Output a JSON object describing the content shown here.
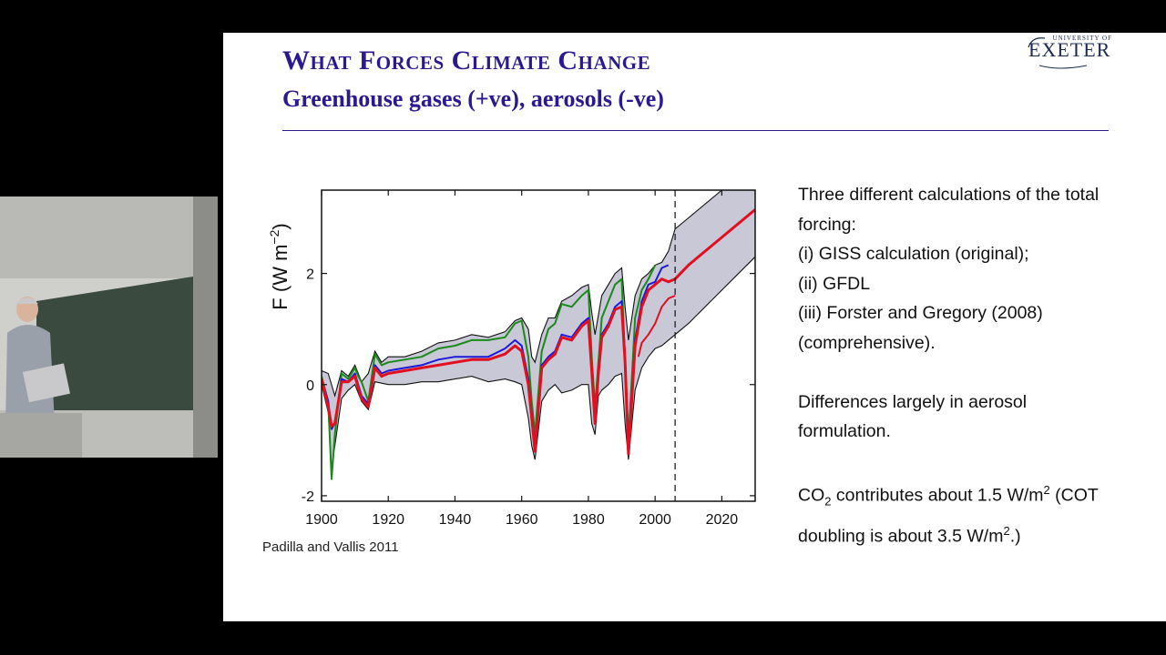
{
  "slide": {
    "title": "What Forces Climate Change",
    "subtitle": "Greenhouse gases (+ve), aerosols (-ve)",
    "logo_small": "UNIVERSITY OF",
    "logo_main": "EXETER",
    "credit": "Padilla and Vallis 2011",
    "notes": {
      "line1": "Three different calculations of the total",
      "line2": "forcing:",
      "line3": "(i) GISS calculation (original);",
      "line4": "(ii) GFDL",
      "line5": "(iii) Forster and Gregory (2008)",
      "line6": "(comprehensive).",
      "line7": "Differences largely in aerosol",
      "line8": "formulation.",
      "co2_a": "CO",
      "co2_sub": "2",
      "co2_b": " contributes about 1.5 W/m",
      "co2_sup": "2",
      "co2_c": " (COT",
      "co2_d": "doubling is about 3.5 W/m",
      "co2_sup2": "2",
      "co2_e": ".)"
    }
  },
  "colors": {
    "title": "#2b1a8f",
    "band": "#c8c8d6",
    "series_green": "#1a8a1a",
    "series_blue": "#1a1ad8",
    "series_red": "#e01020"
  },
  "chart_data": {
    "type": "line",
    "ylabel": "F (W m",
    "ylabel_sup": "−2",
    "ylabel_close": ")",
    "xlim": [
      1900,
      2030
    ],
    "ylim": [
      -2.1,
      3.5
    ],
    "x_ticks": [
      1900,
      1920,
      1940,
      1960,
      1980,
      2000,
      2020
    ],
    "x_tick_labels": [
      "1900",
      "1920",
      "1940",
      "1960",
      "1980",
      "2000",
      "2020"
    ],
    "y_ticks": [
      -2,
      0,
      2
    ],
    "y_tick_labels": [
      "-2",
      "0",
      "2"
    ],
    "vline_x": 2006,
    "band_upper": {
      "x": [
        1900,
        1902,
        1904,
        1906,
        1908,
        1910,
        1912,
        1914,
        1916,
        1918,
        1920,
        1925,
        1930,
        1935,
        1940,
        1945,
        1950,
        1955,
        1958,
        1960,
        1962,
        1963,
        1964,
        1966,
        1968,
        1970,
        1972,
        1975,
        1978,
        1980,
        1981,
        1982,
        1984,
        1986,
        1988,
        1990,
        1991,
        1992,
        1994,
        1996,
        1998,
        2000,
        2002,
        2004,
        2006,
        2010,
        2020,
        2030
      ],
      "y": [
        0.25,
        0.2,
        -0.2,
        0.25,
        0.15,
        0.35,
        0.05,
        0.2,
        0.6,
        0.4,
        0.5,
        0.5,
        0.6,
        0.75,
        0.8,
        0.9,
        0.85,
        0.95,
        1.15,
        1.2,
        1.0,
        0.5,
        0.4,
        0.9,
        1.2,
        1.2,
        1.5,
        1.6,
        1.75,
        1.8,
        1.3,
        0.9,
        1.6,
        1.8,
        2.0,
        2.1,
        1.4,
        0.8,
        1.6,
        1.9,
        2.0,
        2.15,
        2.2,
        2.4,
        2.8,
        3.0,
        3.5,
        4.1
      ]
    },
    "band_lower": {
      "x": [
        1900,
        1902,
        1903,
        1904,
        1906,
        1908,
        1910,
        1912,
        1914,
        1916,
        1920,
        1925,
        1930,
        1935,
        1940,
        1945,
        1950,
        1955,
        1958,
        1960,
        1962,
        1963,
        1964,
        1966,
        1968,
        1970,
        1972,
        1975,
        1978,
        1980,
        1981,
        1982,
        1983,
        1984,
        1986,
        1988,
        1990,
        1991,
        1992,
        1994,
        1996,
        1998,
        2000,
        2002,
        2004,
        2006,
        2010,
        2020,
        2030
      ],
      "y": [
        0.0,
        -0.5,
        -1.5,
        -1.1,
        -0.25,
        -0.1,
        0.0,
        -0.3,
        -0.45,
        0.05,
        0.0,
        0.0,
        0.05,
        0.05,
        0.1,
        0.15,
        0.05,
        0.1,
        0.05,
        0.0,
        -0.6,
        -1.1,
        -1.35,
        -0.3,
        -0.1,
        0.0,
        -0.15,
        -0.1,
        0.0,
        0.0,
        -0.7,
        -0.9,
        -0.2,
        -0.1,
        0.0,
        0.15,
        0.2,
        -0.7,
        -1.35,
        -0.1,
        0.3,
        0.5,
        0.65,
        0.7,
        0.8,
        0.9,
        1.1,
        1.7,
        2.3
      ]
    },
    "series": [
      {
        "color_key": "series_green",
        "x": [
          1900,
          1902,
          1903,
          1904,
          1906,
          1908,
          1910,
          1911,
          1912,
          1914,
          1916,
          1918,
          1920,
          1925,
          1930,
          1935,
          1940,
          1945,
          1950,
          1955,
          1958,
          1960,
          1962,
          1963,
          1964,
          1966,
          1968,
          1970,
          1972,
          1975,
          1978,
          1980,
          1981,
          1982,
          1983,
          1984,
          1986,
          1988,
          1990,
          1991,
          1992,
          1994,
          1996,
          1998,
          2000
        ],
        "y": [
          0.15,
          -0.3,
          -1.7,
          -0.9,
          0.2,
          0.1,
          0.3,
          0.15,
          0.05,
          -0.3,
          0.55,
          0.35,
          0.4,
          0.45,
          0.5,
          0.65,
          0.7,
          0.8,
          0.8,
          0.85,
          1.1,
          1.15,
          0.5,
          -0.3,
          -0.9,
          0.6,
          1.0,
          1.1,
          1.45,
          1.4,
          1.6,
          1.7,
          0.5,
          -0.4,
          0.4,
          1.2,
          1.5,
          1.8,
          1.9,
          0.4,
          -1.0,
          1.2,
          1.7,
          1.9,
          2.15
        ]
      },
      {
        "color_key": "series_blue",
        "x": [
          1900,
          1902,
          1903,
          1904,
          1906,
          1908,
          1910,
          1912,
          1914,
          1916,
          1918,
          1920,
          1925,
          1930,
          1935,
          1940,
          1945,
          1950,
          1955,
          1958,
          1960,
          1962,
          1963,
          1964,
          1966,
          1968,
          1970,
          1972,
          1975,
          1978,
          1980,
          1981,
          1982,
          1983,
          1984,
          1986,
          1988,
          1990,
          1991,
          1992,
          1994,
          1996,
          1998,
          2000,
          2002,
          2004
        ],
        "y": [
          0.1,
          -0.3,
          -0.8,
          -0.7,
          0.1,
          0.05,
          0.2,
          -0.2,
          -0.35,
          0.35,
          0.2,
          0.25,
          0.3,
          0.35,
          0.45,
          0.5,
          0.5,
          0.5,
          0.65,
          0.8,
          0.7,
          0.1,
          -0.5,
          -1.1,
          0.35,
          0.5,
          0.6,
          0.9,
          0.85,
          1.1,
          1.2,
          0.3,
          -0.6,
          0.3,
          0.9,
          1.1,
          1.4,
          1.5,
          0.5,
          -1.1,
          0.8,
          1.5,
          1.8,
          1.85,
          2.1,
          2.15
        ]
      },
      {
        "color_key": "series_red",
        "x": [
          1900,
          1902,
          1903,
          1904,
          1906,
          1908,
          1910,
          1912,
          1914,
          1916,
          1918,
          1920,
          1925,
          1930,
          1935,
          1940,
          1945,
          1950,
          1955,
          1958,
          1960,
          1962,
          1963,
          1964,
          1966,
          1968,
          1970,
          1972,
          1975,
          1978,
          1980,
          1981,
          1982,
          1983,
          1984,
          1986,
          1988,
          1990,
          1991,
          1992,
          1994,
          1996,
          1998,
          2000,
          2002,
          2004,
          2006,
          2010,
          2020,
          2030
        ],
        "y": [
          0.1,
          -0.4,
          -0.75,
          -0.7,
          0.05,
          0.05,
          0.15,
          -0.25,
          -0.4,
          0.3,
          0.15,
          0.2,
          0.25,
          0.3,
          0.35,
          0.4,
          0.45,
          0.45,
          0.55,
          0.7,
          0.6,
          0.0,
          -0.6,
          -1.2,
          0.3,
          0.45,
          0.55,
          0.85,
          0.8,
          1.05,
          1.15,
          0.25,
          -0.7,
          0.2,
          0.85,
          1.05,
          1.35,
          1.4,
          0.4,
          -1.25,
          0.7,
          1.4,
          1.7,
          1.8,
          1.9,
          1.85,
          1.9,
          2.15,
          2.65,
          3.15
        ]
      },
      {
        "color_key": "series_red",
        "x": [
          1995,
          1996,
          1998,
          2000,
          2002,
          2004,
          2006
        ],
        "y": [
          0.5,
          0.75,
          0.9,
          1.1,
          1.4,
          1.55,
          1.6
        ]
      }
    ]
  }
}
